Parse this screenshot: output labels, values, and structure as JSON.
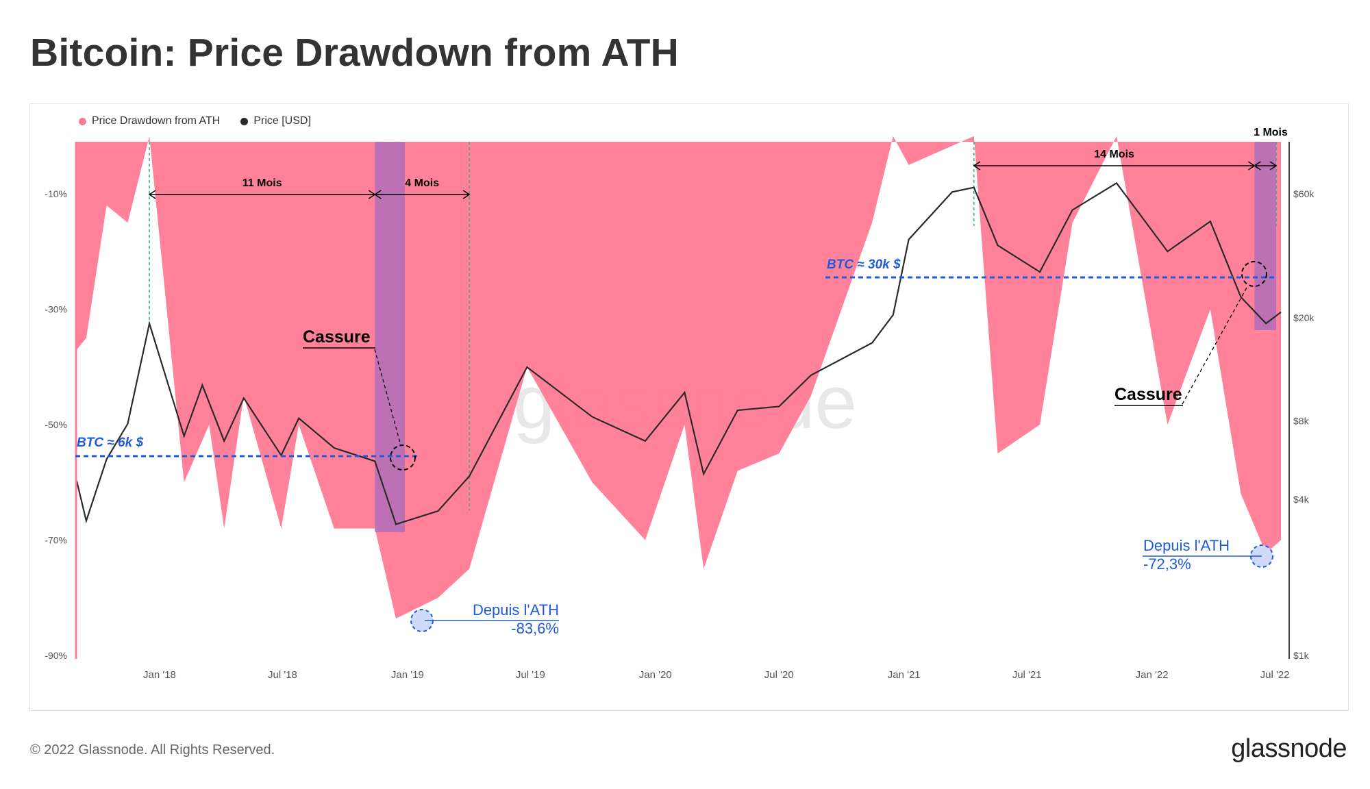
{
  "title": "Bitcoin: Price Drawdown from ATH",
  "footer": "© 2022 Glassnode. All Rights Reserved.",
  "logo": "glassnode",
  "watermark": "glassnode",
  "colors": {
    "drawdown": "#ff7a95",
    "price": "#2a2a2a",
    "highlight": "#b06fb9",
    "annot_blue": "#1f5bdc",
    "guide_green": "#2ab07f"
  },
  "legend": [
    {
      "label": "Price Drawdown from ATH",
      "color": "#ff7a95"
    },
    {
      "label": "Price [USD]",
      "color": "#2a2a2a"
    }
  ],
  "chart_data": {
    "type": "area",
    "x_ticks": [
      "Jan '18",
      "Jul '18",
      "Jan '19",
      "Jul '19",
      "Jan '20",
      "Jul '20",
      "Jan '21",
      "Jul '21",
      "Jan '22",
      "Jul '22"
    ],
    "y_left": {
      "ticks": [
        "-10%",
        "-30%",
        "-50%",
        "-70%",
        "-90%"
      ],
      "values": [
        -10,
        -30,
        -50,
        -70,
        -90
      ],
      "range": [
        0,
        -90
      ]
    },
    "y_right": {
      "ticks": [
        "$60k",
        "$20k",
        "$8k",
        "$4k",
        "$1k"
      ],
      "values": [
        60000,
        20000,
        8000,
        4000,
        1000
      ],
      "scale": "log"
    },
    "series": [
      {
        "name": "Price Drawdown from ATH",
        "x": [
          "2017-09-01",
          "2017-09-15",
          "2017-10-15",
          "2017-11-15",
          "2017-12-17",
          "2018-02-06",
          "2018-03-15",
          "2018-04-06",
          "2018-05-05",
          "2018-06-29",
          "2018-07-25",
          "2018-09-15",
          "2018-11-14",
          "2018-12-15",
          "2019-02-15",
          "2019-04-02",
          "2019-06-26",
          "2019-09-30",
          "2019-12-17",
          "2020-02-13",
          "2020-03-12",
          "2020-05-01",
          "2020-07-01",
          "2020-08-17",
          "2020-11-15",
          "2020-12-16",
          "2021-01-08",
          "2021-04-14",
          "2021-05-19",
          "2021-07-20",
          "2021-09-06",
          "2021-11-10",
          "2022-01-24",
          "2022-03-28",
          "2022-05-12",
          "2022-06-18",
          "2022-07-10"
        ],
        "y": [
          -37,
          -35,
          -12,
          -15,
          0,
          -60,
          -50,
          -68,
          -45,
          -68,
          -50,
          -68,
          -68,
          -83.6,
          -80,
          -75,
          -40,
          -60,
          -70,
          -50,
          -75,
          -58,
          -55,
          -45,
          -15,
          0,
          -5,
          0,
          -55,
          -50,
          -15,
          0,
          -50,
          -30,
          -62,
          -72.3,
          -70
        ]
      },
      {
        "name": "Price [USD]",
        "x": [
          "2017-09-01",
          "2017-09-15",
          "2017-10-15",
          "2017-11-15",
          "2017-12-17",
          "2018-02-06",
          "2018-03-05",
          "2018-04-06",
          "2018-05-05",
          "2018-06-29",
          "2018-07-25",
          "2018-09-15",
          "2018-11-14",
          "2018-12-15",
          "2019-02-15",
          "2019-04-02",
          "2019-06-26",
          "2019-09-30",
          "2019-12-17",
          "2020-02-13",
          "2020-03-12",
          "2020-05-01",
          "2020-07-01",
          "2020-08-17",
          "2020-11-15",
          "2020-12-16",
          "2021-01-08",
          "2021-03-13",
          "2021-04-14",
          "2021-05-19",
          "2021-07-20",
          "2021-09-06",
          "2021-11-10",
          "2022-01-24",
          "2022-03-28",
          "2022-05-12",
          "2022-06-18",
          "2022-07-10"
        ],
        "y": [
          4700,
          3300,
          5700,
          7800,
          19000,
          7000,
          11000,
          6700,
          9800,
          5900,
          8200,
          6300,
          5600,
          3200,
          3600,
          4900,
          12900,
          8300,
          6700,
          10300,
          5000,
          8800,
          9100,
          12000,
          16000,
          20500,
          40000,
          61000,
          63500,
          38000,
          30000,
          52000,
          66000,
          36000,
          47000,
          24000,
          19000,
          21000
        ]
      }
    ],
    "annotations": {
      "duration_labels": [
        "11 Mois",
        "4 Mois",
        "14 Mois",
        "1 Mois"
      ],
      "cassure_labels": [
        "Cassure",
        "Cassure"
      ],
      "btc_levels": [
        "BTC ≈ 6k $",
        "BTC ≈ 30k $"
      ],
      "ath_drawdown_labels": [
        {
          "line1": "Depuis l'ATH",
          "line2": "-83,6%"
        },
        {
          "line1": "Depuis l'ATH",
          "line2": "-72,3%"
        }
      ]
    }
  }
}
